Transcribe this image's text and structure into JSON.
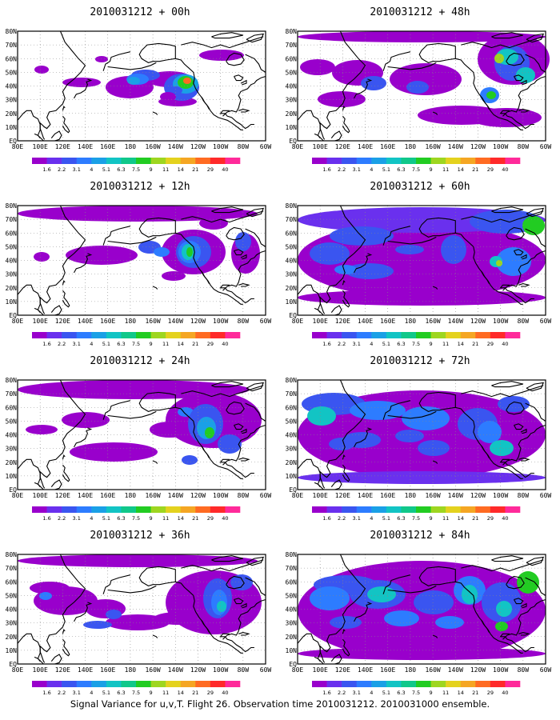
{
  "figure": {
    "footer": "Signal Variance for u,v,T. Flight 26. Observation time 2010031212. 2010031000 ensemble."
  },
  "axes": {
    "lat_labels": [
      "80N",
      "70N",
      "60N",
      "50N",
      "40N",
      "30N",
      "20N",
      "10N",
      "EQ"
    ],
    "lon_labels": [
      "80E",
      "100E",
      "120E",
      "140E",
      "160E",
      "180",
      "160W",
      "140W",
      "120W",
      "100W",
      "80W",
      "60W"
    ],
    "lat_range_deg": [
      0,
      80
    ],
    "lon_range_deg_east": [
      80,
      300
    ],
    "grid": true
  },
  "colorbar": {
    "levels": [
      "1.6",
      "2.2",
      "3.1",
      "4",
      "5.1",
      "6.3",
      "7.5",
      "9",
      "11",
      "14",
      "21",
      "29",
      "40"
    ],
    "colors": [
      "#9900cc",
      "#6a30ee",
      "#3a55f0",
      "#2d7cff",
      "#1aa0e6",
      "#12c4c4",
      "#10c88a",
      "#22cc22",
      "#9ed620",
      "#e4d21e",
      "#f5a623",
      "#ff6b22",
      "#ff2a2a",
      "#ff2a9a"
    ]
  },
  "panels": [
    {
      "title": "2010031212 + 00h"
    },
    {
      "title": "2010031212 + 48h"
    },
    {
      "title": "2010031212 + 12h"
    },
    {
      "title": "2010031212 + 60h"
    },
    {
      "title": "2010031212 + 24h"
    },
    {
      "title": "2010031212 + 72h"
    },
    {
      "title": "2010031212 + 36h"
    },
    {
      "title": "2010031212 + 84h"
    }
  ]
}
